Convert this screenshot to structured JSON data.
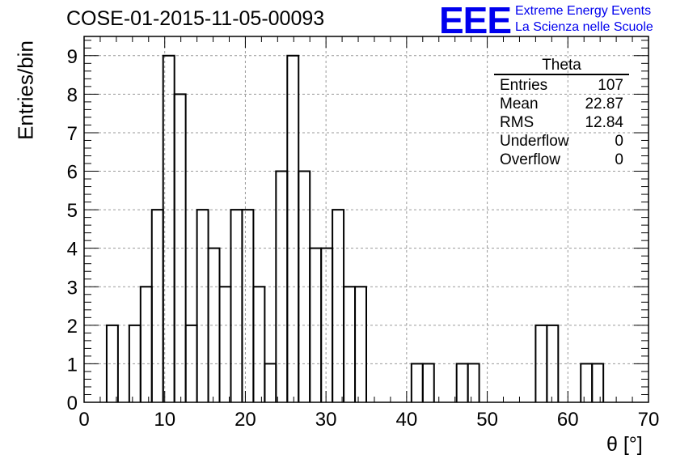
{
  "title": "COSE-01-2015-11-05-00093",
  "logo": {
    "mark": "EEE",
    "line1": "Extreme Energy Events",
    "line2": "La Scienza nelle Scuole",
    "color": "#0000ee"
  },
  "stats_box": {
    "title": "Theta",
    "rows": [
      {
        "label": "Entries",
        "value": "107"
      },
      {
        "label": "Mean",
        "value": "22.87"
      },
      {
        "label": "RMS",
        "value": "12.84"
      },
      {
        "label": "Underflow",
        "value": "0"
      },
      {
        "label": "Overflow",
        "value": "0"
      }
    ]
  },
  "chart_data": {
    "type": "bar",
    "style": "step-histogram",
    "title": "COSE-01-2015-11-05-00093",
    "xlabel": "θ [°]",
    "ylabel": "Entries/bin",
    "xlim": [
      0,
      70
    ],
    "ylim": [
      0,
      9.5
    ],
    "grid": true,
    "bin_width": 1.4,
    "x_ticks": [
      0,
      10,
      20,
      30,
      40,
      50,
      60,
      70
    ],
    "y_ticks": [
      0,
      1,
      2,
      3,
      4,
      5,
      6,
      7,
      8,
      9
    ],
    "bin_low_edges": [
      0,
      1.4,
      2.8,
      4.2,
      5.6,
      7.0,
      8.4,
      9.8,
      11.2,
      12.6,
      14.0,
      15.4,
      16.8,
      18.2,
      19.6,
      21.0,
      22.4,
      23.8,
      25.2,
      26.6,
      28.0,
      29.4,
      30.8,
      32.2,
      33.6,
      35.0,
      36.4,
      37.8,
      39.2,
      40.6,
      42.0,
      43.4,
      44.8,
      46.2,
      47.6,
      49.0,
      50.4,
      51.8,
      53.2,
      54.6,
      56.0,
      57.4,
      58.8,
      60.2,
      61.6,
      63.0,
      64.4,
      65.8,
      67.2,
      68.6
    ],
    "values": [
      0,
      0,
      2,
      0,
      2,
      3,
      5,
      9,
      8,
      2,
      5,
      4,
      3,
      5,
      5,
      3,
      1,
      6,
      9,
      6,
      4,
      4,
      5,
      3,
      3,
      0,
      0,
      0,
      0,
      1,
      1,
      0,
      0,
      1,
      1,
      0,
      0,
      0,
      0,
      0,
      2,
      2,
      0,
      0,
      1,
      1,
      0,
      0,
      0,
      0
    ],
    "line_color": "#000000",
    "grid_color": "#9a9a9a"
  }
}
